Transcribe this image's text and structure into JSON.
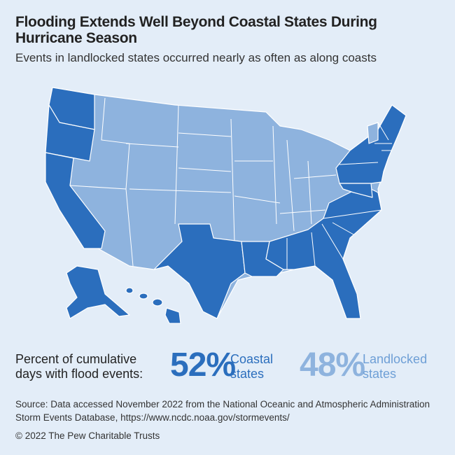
{
  "header": {
    "title": "Flooding Extends Well Beyond Coastal States During Hurricane Season",
    "subtitle": "Events in landlocked states occurred nearly as often as along coasts"
  },
  "summary": {
    "label": "Percent of cumulative days with flood events:",
    "stats": [
      {
        "percent": "52%",
        "label": "Coastal states"
      },
      {
        "percent": "48%",
        "label": "Landlocked states"
      }
    ]
  },
  "footer": {
    "source": "Source: Data accessed November 2022 from the National Oceanic and Atmospheric Administration Storm Events Database, https://www.ncdc.noaa.gov/stormevents/",
    "copyright": "© 2022 The Pew Charitable Trusts"
  }
}
